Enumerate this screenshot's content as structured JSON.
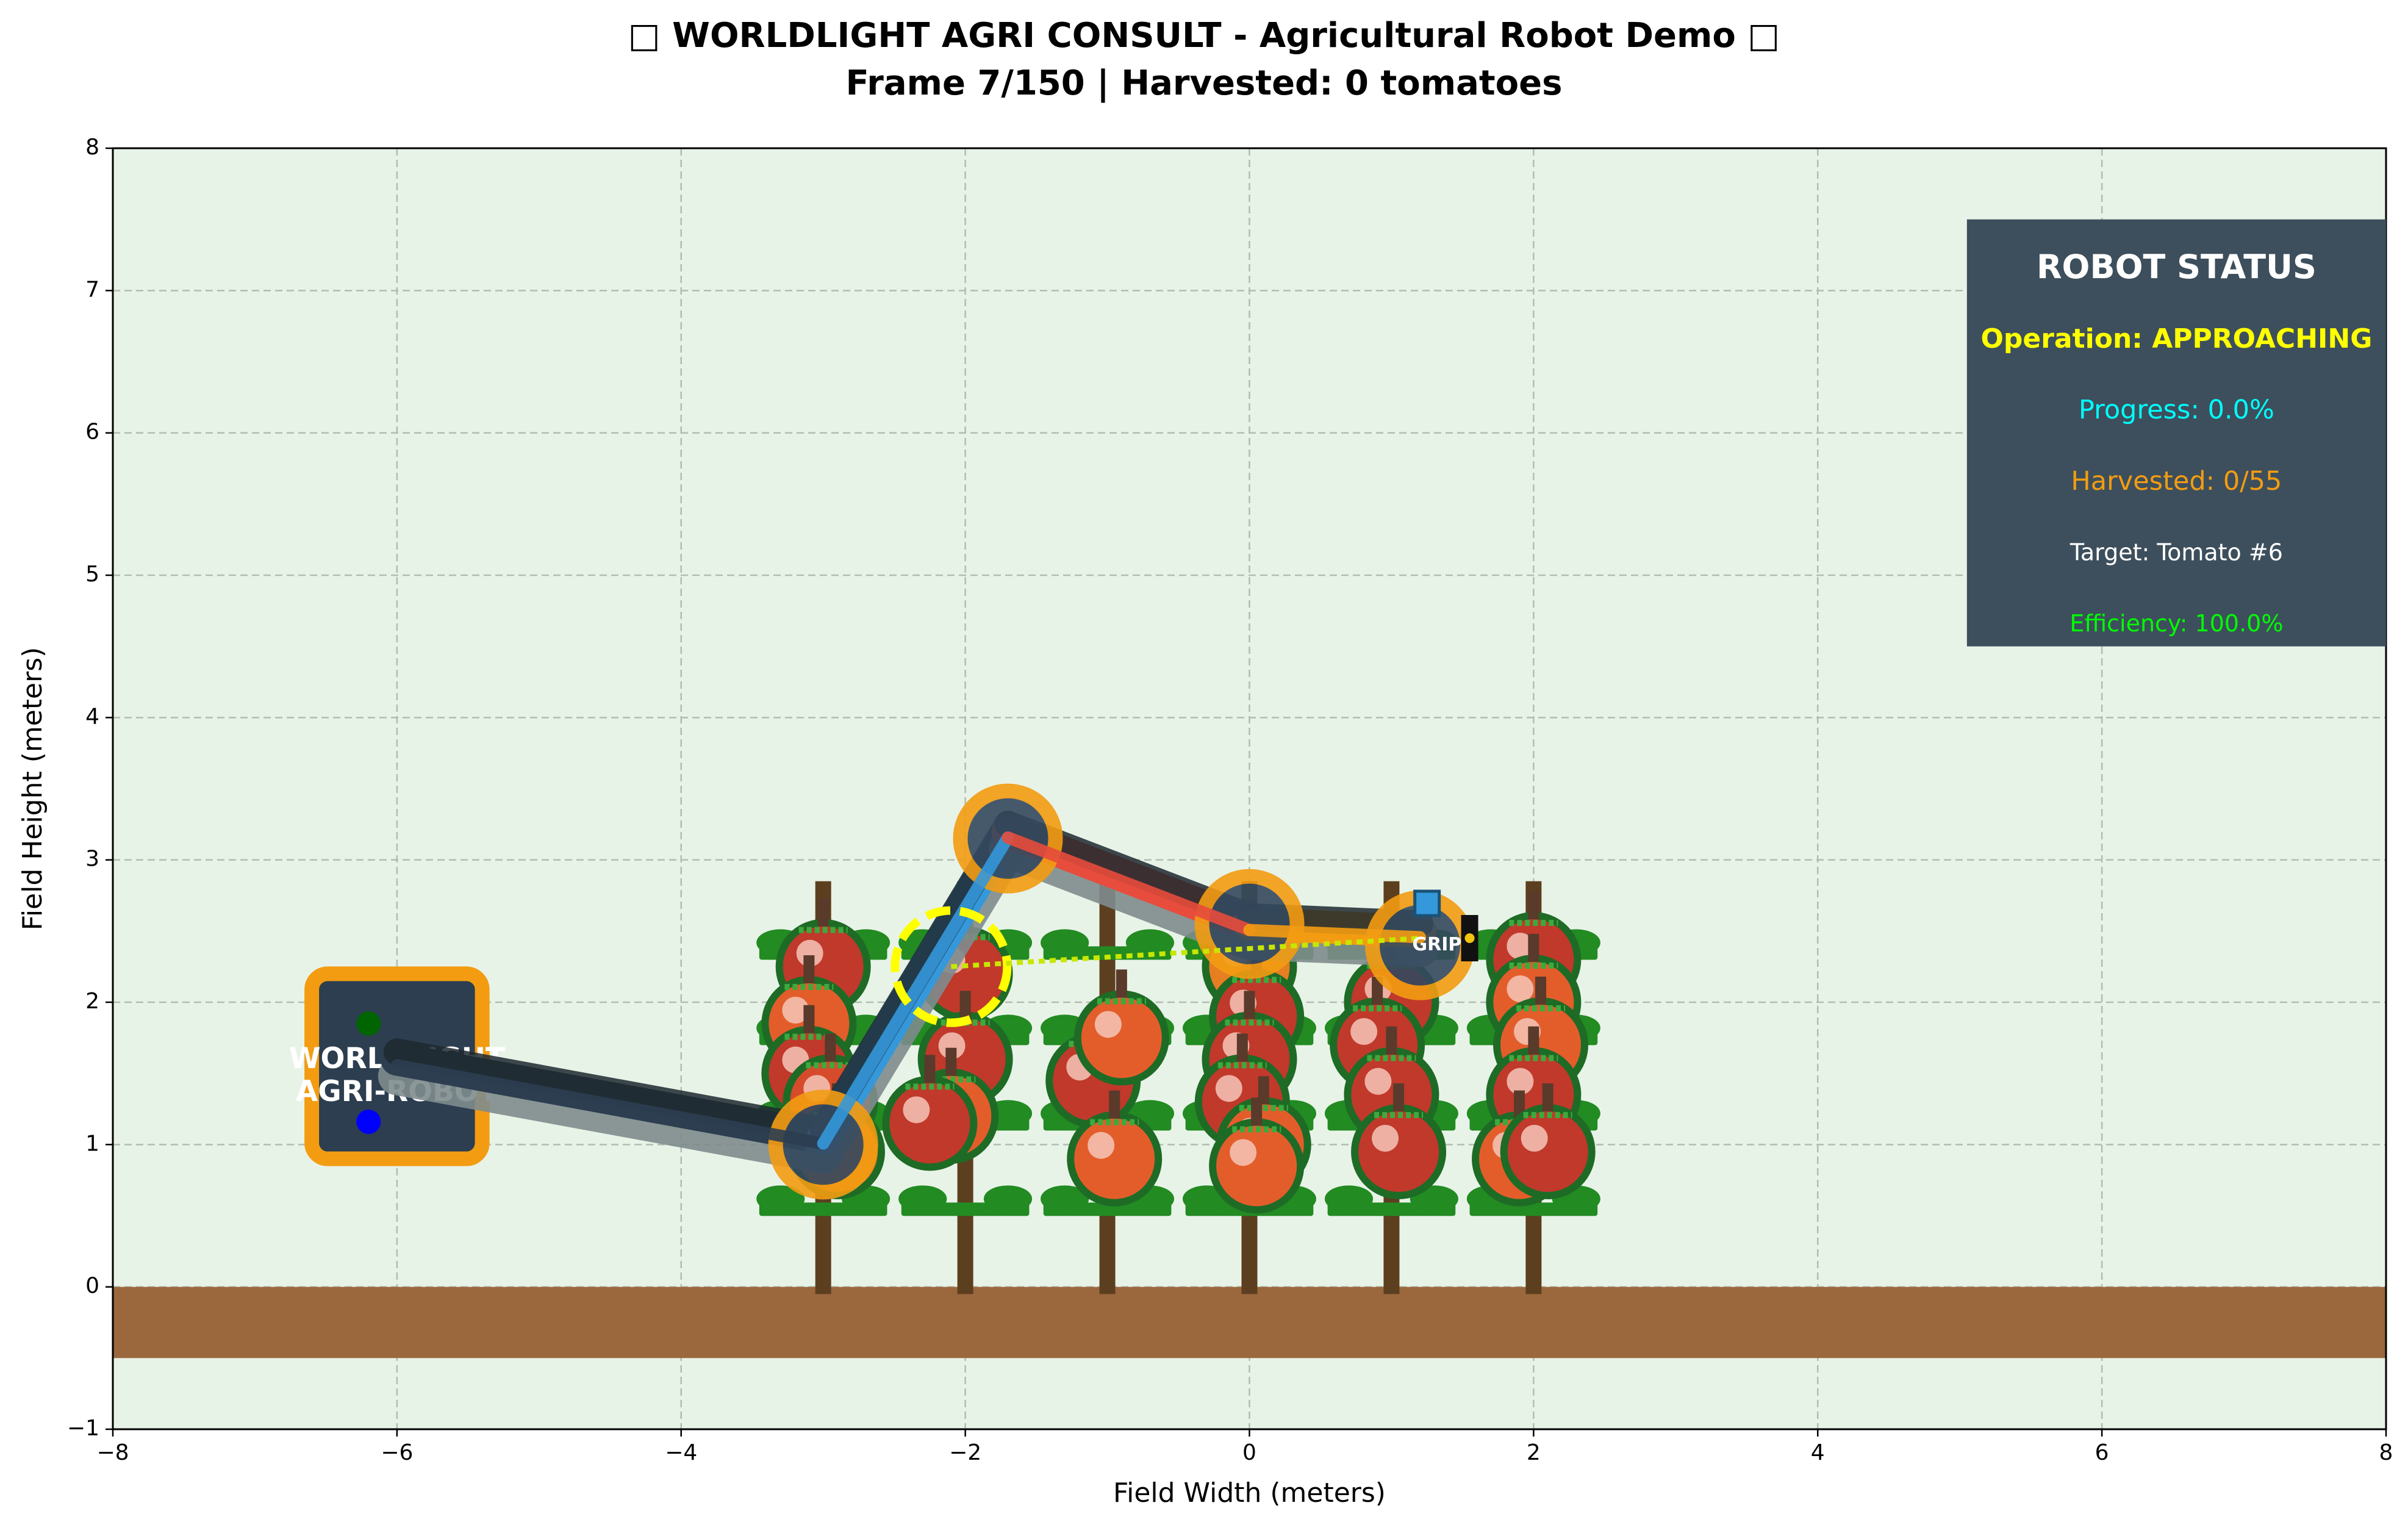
{
  "title": {
    "line1": "□ WORLDLIGHT AGRI CONSULT - Agricultural Robot Demo □",
    "line2": "Frame 7/150 | Harvested: 0 tomatoes"
  },
  "chart_data": {
    "type": "scatter",
    "xlabel": "Field Width (meters)",
    "ylabel": "Field Height (meters)",
    "xlim": [
      -8,
      8
    ],
    "ylim": [
      -1,
      8
    ],
    "xticks": [
      -8,
      -6,
      -4,
      -2,
      0,
      2,
      4,
      6,
      8
    ],
    "yticks": [
      -1,
      0,
      1,
      2,
      3,
      4,
      5,
      6,
      7,
      8
    ],
    "grid": true,
    "background_color": "#e8f3e8",
    "ground": {
      "x": [
        -8,
        8
      ],
      "y": [
        -0.5,
        0
      ],
      "color": "#9b673d"
    },
    "robot_base": {
      "x": [
        -6.6,
        -5.4
      ],
      "y": [
        0.9,
        2.2
      ],
      "label_lines": [
        "WORLDLIGHT",
        "AGRI-ROBOT"
      ],
      "fill": "#2c3e50",
      "border": "#f39c12",
      "leds": [
        {
          "x": -6.2,
          "y": 1.85,
          "color": "#006400"
        },
        {
          "x": -6.2,
          "y": 1.16,
          "color": "#0000ff"
        }
      ]
    },
    "arm": {
      "joints": [
        [
          -6,
          1.6
        ],
        [
          -3,
          1.05
        ],
        [
          -1.7,
          3.2
        ],
        [
          0,
          2.55
        ],
        [
          1.2,
          2.5
        ]
      ],
      "segment_colors": [
        "#2c3e50",
        "#3498db",
        "#e74c3c",
        "#f39c12"
      ],
      "joint_markers": [
        {
          "x": -3,
          "y": 1.0
        },
        {
          "x": -1.7,
          "y": 3.15
        },
        {
          "x": 0,
          "y": 2.55
        },
        {
          "x": 1.2,
          "y": 2.4
        }
      ],
      "gripper_label": "GRIP",
      "gripper": {
        "x": 1.55,
        "y": 2.45
      }
    },
    "target": {
      "x": -2.1,
      "y": 2.25,
      "color": "#ffff00"
    },
    "target_line": {
      "x": [
        -2.1,
        1.2
      ],
      "y": [
        2.25,
        2.45
      ],
      "color": "#c8e600"
    },
    "plants": {
      "x": [
        -3,
        -2,
        -1,
        0,
        1,
        2
      ],
      "stem_top": 2.85,
      "stem_color": "#5c3f1e",
      "leaf_color": "#228b22",
      "leaf_rows": [
        0.55,
        1.15,
        1.75,
        2.35
      ],
      "tomatoes": [
        {
          "x": -3.0,
          "y": 2.25,
          "c": "#c0392b"
        },
        {
          "x": -3.1,
          "y": 1.85,
          "c": "#e35d2b"
        },
        {
          "x": -3.1,
          "y": 1.5,
          "c": "#c0392b"
        },
        {
          "x": -2.95,
          "y": 1.3,
          "c": "#d64b2b"
        },
        {
          "x": -2.9,
          "y": 0.95,
          "c": "#e67e22"
        },
        {
          "x": -2.0,
          "y": 2.2,
          "c": "#c0392b"
        },
        {
          "x": -2.0,
          "y": 1.6,
          "c": "#c0392b"
        },
        {
          "x": -2.1,
          "y": 1.2,
          "c": "#e35d2b"
        },
        {
          "x": -2.25,
          "y": 1.15,
          "c": "#c0392b"
        },
        {
          "x": -1.1,
          "y": 1.45,
          "c": "#c0392b"
        },
        {
          "x": -0.9,
          "y": 1.75,
          "c": "#e35d2b"
        },
        {
          "x": -0.95,
          "y": 0.9,
          "c": "#e35d2b"
        },
        {
          "x": 0.0,
          "y": 2.25,
          "c": "#e67e22"
        },
        {
          "x": 0.05,
          "y": 1.9,
          "c": "#c0392b"
        },
        {
          "x": 0.0,
          "y": 1.6,
          "c": "#c0392b"
        },
        {
          "x": -0.05,
          "y": 1.3,
          "c": "#c0392b"
        },
        {
          "x": 0.1,
          "y": 1.0,
          "c": "#e35d2b"
        },
        {
          "x": 0.05,
          "y": 0.85,
          "c": "#e35d2b"
        },
        {
          "x": 1.0,
          "y": 2.0,
          "c": "#c0392b"
        },
        {
          "x": 0.9,
          "y": 1.7,
          "c": "#c0392b"
        },
        {
          "x": 1.0,
          "y": 1.35,
          "c": "#c0392b"
        },
        {
          "x": 1.05,
          "y": 0.95,
          "c": "#c0392b"
        },
        {
          "x": 2.0,
          "y": 2.3,
          "c": "#c0392b"
        },
        {
          "x": 2.0,
          "y": 2.0,
          "c": "#e35d2b"
        },
        {
          "x": 2.05,
          "y": 1.7,
          "c": "#e35d2b"
        },
        {
          "x": 2.0,
          "y": 1.35,
          "c": "#c0392b"
        },
        {
          "x": 1.9,
          "y": 0.9,
          "c": "#e35d2b"
        },
        {
          "x": 2.1,
          "y": 0.95,
          "c": "#c0392b"
        }
      ]
    },
    "status_panel": {
      "title": "ROBOT STATUS",
      "operation": "Operation: APPROACHING",
      "progress": "Progress: 0.0%",
      "harvested": "Harvested: 0/55",
      "target": "Target: Tomato #6",
      "efficiency": "Efficiency: 100.0%",
      "fill": "#3d4f5c",
      "colors": {
        "title": "#ffffff",
        "operation": "#ffff00",
        "progress": "#00ffff",
        "harvested": "#f39c12",
        "target": "#ffffff",
        "efficiency": "#00ff00"
      }
    }
  }
}
